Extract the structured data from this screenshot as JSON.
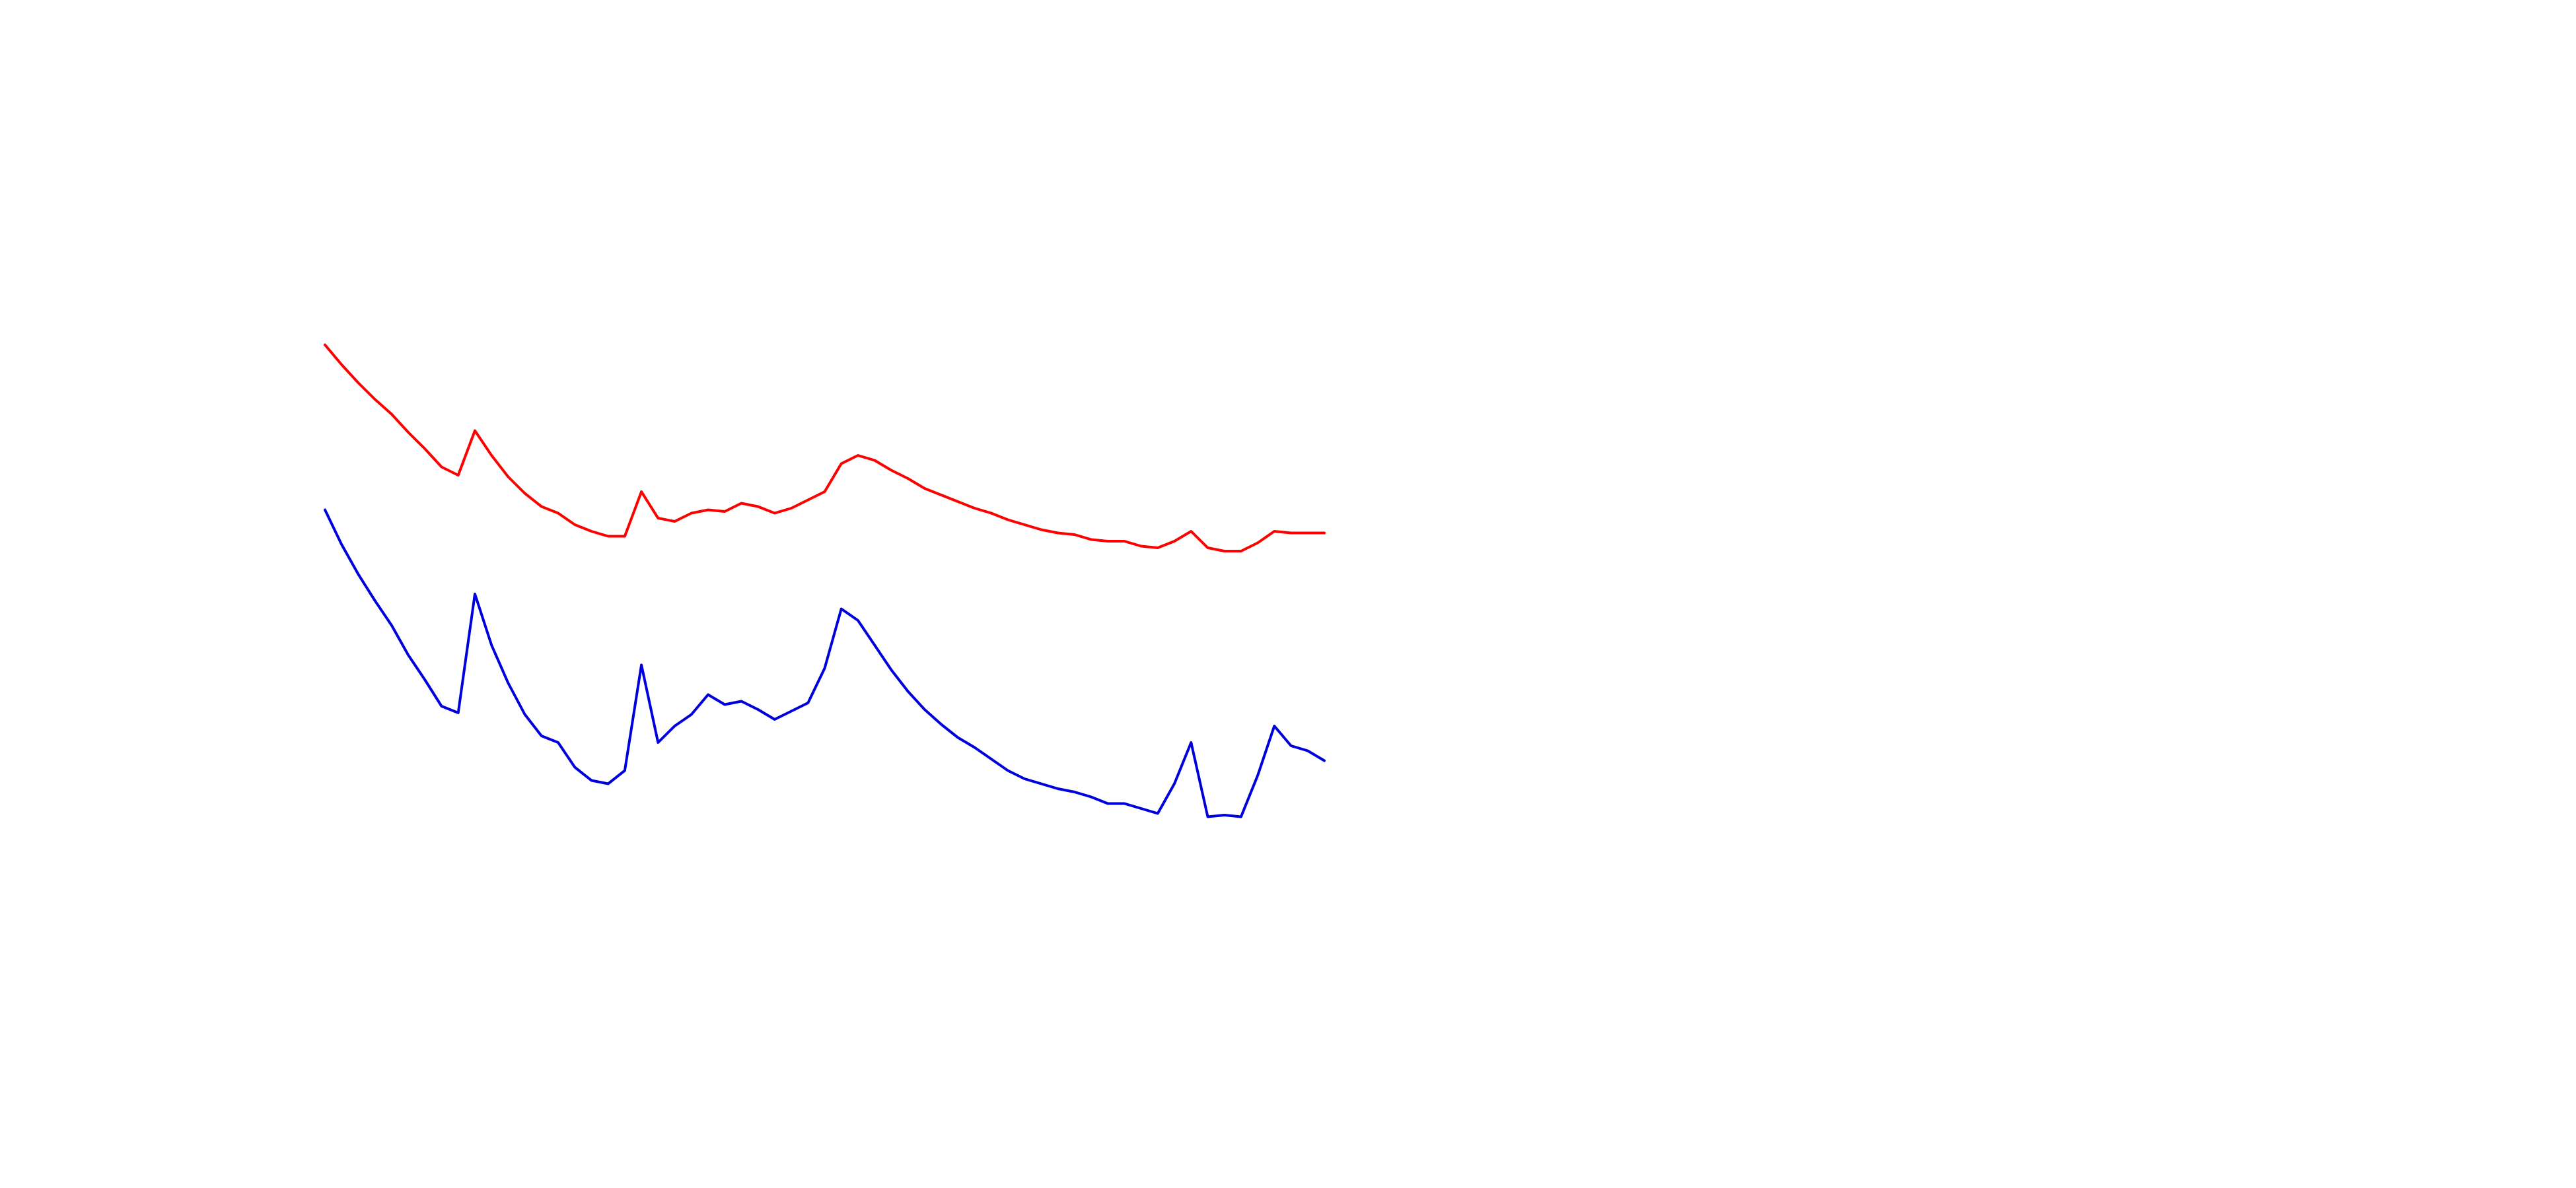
{
  "chart_data": {
    "type": "line",
    "ylim": [
      0,
      720
    ],
    "series": [
      {
        "color": "#ff0000",
        "values": [
          511,
          499,
          488,
          478,
          469,
          458,
          448,
          437,
          432,
          459,
          444,
          431,
          421,
          413,
          409,
          402,
          398,
          395,
          395,
          422,
          406,
          404,
          409,
          411,
          410,
          415,
          413,
          409,
          412,
          417,
          422,
          439,
          444,
          441,
          435,
          430,
          424,
          420,
          416,
          412,
          409,
          405,
          402,
          399,
          397,
          396,
          393,
          392,
          392,
          389,
          388,
          392,
          398,
          388,
          386,
          386,
          391,
          398,
          397,
          397,
          397
        ]
      },
      {
        "color": "#0000dd",
        "values": [
          411,
          390,
          372,
          356,
          341,
          323,
          308,
          292,
          288,
          360,
          329,
          306,
          287,
          274,
          270,
          255,
          247,
          245,
          253,
          317,
          270,
          280,
          287,
          299,
          293,
          295,
          290,
          284,
          289,
          294,
          315,
          351,
          344,
          329,
          314,
          301,
          290,
          281,
          273,
          267,
          260,
          253,
          248,
          245,
          242,
          240,
          237,
          233,
          233,
          230,
          227,
          245,
          270,
          225,
          226,
          225,
          250,
          280,
          268,
          265,
          259
        ]
      }
    ]
  }
}
